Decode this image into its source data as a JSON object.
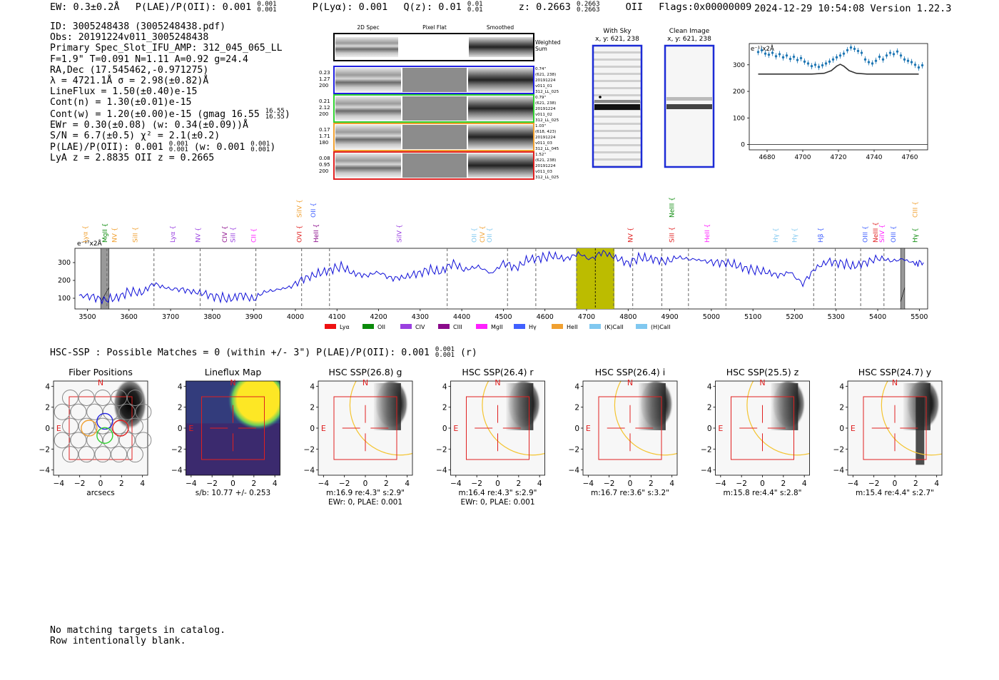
{
  "header": {
    "ew": "EW: 0.3±0.2Å",
    "plae_label": "P(LAE)/P(OII): 0.001",
    "plae_hi": "0.001",
    "plae_lo": "0.001",
    "plya": "P(Lyα): 0.001",
    "qz_label": "Q(z): 0.01",
    "qz_hi": "0.01",
    "qz_lo": "0.01",
    "z_label": "z: 0.2663",
    "z_hi": "0.2663",
    "z_lo": "0.2663",
    "z_line": "OII",
    "flags": "Flags:0x00000009",
    "stamp": "2024-12-29 10:54:08  Version 1.22.3"
  },
  "info": {
    "id": "ID: 3005248438 (3005248438.pdf)",
    "obs": "Obs: 20191224v011_3005248438",
    "primary": "Primary Spec_Slot_IFU_AMP: 312_045_065_LL",
    "fiber": "F=1.9\"  T=0.091  N=1.11  A=0.92  g=24.4",
    "radec": "RA,Dec (17.545462,-0.971275)",
    "lambda": "λ = 4721.1Å   σ = 2.98(±0.82)Å",
    "lineflux": "LineFlux = 1.50(±0.40)e-15",
    "contn": "Cont(n) = 1.30(±0.01)e-15",
    "contw": "Cont(w) = 1.20(±0.00)e-15 (gmag 16.55",
    "contw_hi": "16.55",
    "contw_lo": "16.55",
    "ewr": "EWr = 0.30(±0.08) (w: 0.34(±0.09))Å",
    "sn": "S/N = 6.7(±0.5)  χ² = 2.1(±0.2)",
    "plae": "P(LAE)/P(OII): 0.001",
    "plae_hi": "0.001",
    "plae_lo": "0.001",
    "plae_w": "(w: 0.001",
    "plae_w_hi": "0.001",
    "plae_w_lo": "0.001",
    "z": "LyA z = 2.8835   OII z = 0.2665"
  },
  "spec_panels": {
    "col_headers": [
      "2D Spec",
      "Pixel Flat",
      "Smoothed"
    ],
    "weighted_label": [
      "Weighted",
      "Sum"
    ],
    "rows": [
      {
        "color": "#2020e0",
        "left": [
          "0.23",
          "1.27",
          "200"
        ],
        "right": [
          "0.74\"",
          "(621, 238)",
          "20191224",
          "v011_01",
          "312_LL_025"
        ]
      },
      {
        "color": "#30d030",
        "left": [
          "0.21",
          "2.12",
          "200"
        ],
        "right": [
          "0.79\"",
          "(621, 238)",
          "20191224",
          "v011_02",
          "312_LL_025"
        ]
      },
      {
        "color": "#f0a030",
        "left": [
          "0.17",
          "1.71",
          "180"
        ],
        "right": [
          "1.03\"",
          "(618, 423)",
          "20191224",
          "v011_03",
          "312_LL_045"
        ]
      },
      {
        "color": "#e02020",
        "left": [
          "0.08",
          "0.95",
          "200"
        ],
        "right": [
          "1.52\"",
          "(621, 238)",
          "20191224",
          "v011_03",
          "312_LL_025"
        ]
      }
    ]
  },
  "sky_panels": {
    "with_sky": [
      "With Sky",
      "x, y: 621, 238"
    ],
    "clean": [
      "Clean Image",
      "x, y: 621, 238"
    ]
  },
  "chart_data": [
    {
      "type": "line",
      "title": "",
      "unit_label": "e⁻¹⁷x2Å",
      "xlim": [
        4670,
        4770
      ],
      "ylim": [
        -20,
        380
      ],
      "xticks": [
        4680,
        4700,
        4720,
        4740,
        4760
      ],
      "yticks": [
        0,
        100,
        200,
        300
      ],
      "series": [
        {
          "x": [
            4675,
            4677,
            4679,
            4681,
            4683,
            4685,
            4687,
            4689,
            4691,
            4693,
            4695,
            4697,
            4699,
            4701,
            4703,
            4705,
            4707,
            4709,
            4711,
            4713,
            4715,
            4717,
            4719,
            4721,
            4723,
            4725,
            4727,
            4729,
            4731,
            4733,
            4735,
            4737,
            4739,
            4741,
            4743,
            4745,
            4747,
            4749,
            4751,
            4753,
            4755,
            4757,
            4759,
            4761,
            4763,
            4765,
            4767
          ],
          "y": [
            348,
            355,
            342,
            338,
            345,
            332,
            340,
            328,
            335,
            322,
            330,
            318,
            325,
            312,
            305,
            295,
            300,
            292,
            298,
            305,
            312,
            320,
            328,
            335,
            342,
            355,
            365,
            360,
            352,
            345,
            320,
            310,
            305,
            315,
            330,
            320,
            335,
            345,
            340,
            350,
            335,
            320,
            315,
            310,
            300,
            290,
            298
          ]
        },
        {
          "x": [
            4675,
            4690,
            4705,
            4712,
            4716,
            4719,
            4721,
            4723,
            4726,
            4730,
            4736,
            4750,
            4765
          ],
          "y": [
            265,
            265,
            265,
            268,
            278,
            295,
            302,
            295,
            278,
            268,
            265,
            265,
            265
          ]
        }
      ]
    },
    {
      "type": "line",
      "title": "",
      "unit_label": "e⁻¹⁷x2Å",
      "xlim": [
        3470,
        5520
      ],
      "ylim": [
        40,
        380
      ],
      "xticks": [
        3500,
        3600,
        3700,
        3800,
        3900,
        4000,
        4100,
        4200,
        4300,
        4400,
        4500,
        4600,
        4700,
        4800,
        4900,
        5000,
        5100,
        5200,
        5300,
        5400,
        5500
      ],
      "yticks": [
        100,
        200,
        300
      ],
      "highlight": [
        4675,
        4767
      ],
      "highlight_center": 4721,
      "gray_bands": [
        [
          3532,
          3552
        ],
        [
          5455,
          5465
        ]
      ],
      "dashed_lines": [
        3547,
        3660,
        3771,
        3905,
        4015,
        4082,
        4365,
        4510,
        4578,
        4676,
        4765,
        4811,
        4881,
        4945,
        5035,
        5246,
        5298,
        5359,
        5415
      ],
      "series": [
        {
          "x": [
            3480,
            3510,
            3540,
            3570,
            3600,
            3630,
            3660,
            3690,
            3720,
            3750,
            3780,
            3810,
            3840,
            3870,
            3900,
            3930,
            3960,
            3990,
            4020,
            4050,
            4080,
            4110,
            4140,
            4170,
            4200,
            4230,
            4260,
            4290,
            4320,
            4350,
            4380,
            4410,
            4440,
            4470,
            4500,
            4530,
            4560,
            4590,
            4620,
            4650,
            4680,
            4710,
            4740,
            4770,
            4800,
            4830,
            4860,
            4890,
            4920,
            4950,
            4980,
            5010,
            5040,
            5070,
            5100,
            5130,
            5160,
            5190,
            5220,
            5250,
            5280,
            5310,
            5340,
            5370,
            5400,
            5430,
            5460,
            5490,
            5510
          ],
          "y": [
            120,
            110,
            90,
            105,
            140,
            130,
            185,
            160,
            150,
            140,
            130,
            110,
            95,
            120,
            100,
            140,
            150,
            170,
            210,
            235,
            260,
            280,
            240,
            230,
            250,
            210,
            220,
            240,
            260,
            250,
            300,
            260,
            280,
            240,
            300,
            270,
            320,
            330,
            340,
            320,
            355,
            320,
            360,
            330,
            300,
            330,
            320,
            310,
            330,
            320,
            315,
            300,
            300,
            280,
            260,
            250,
            230,
            250,
            180,
            270,
            310,
            300,
            280,
            300,
            330,
            310,
            320,
            300,
            300
          ]
        }
      ],
      "line_labels": [
        {
          "name": "Lyα",
          "w": 3500,
          "color": "#f0a030",
          "row": 1
        },
        {
          "name": "MgII",
          "w": 3547,
          "color": "#0a8a0a",
          "row": 1
        },
        {
          "name": "NV",
          "w": 3570,
          "color": "#f0a030",
          "row": 1
        },
        {
          "name": "SiII",
          "w": 3620,
          "color": "#f0a030",
          "row": 1
        },
        {
          "name": "Lyα",
          "w": 3710,
          "color": "#9a40e0",
          "row": 1
        },
        {
          "name": "NV",
          "w": 3771,
          "color": "#9a40e0",
          "row": 1
        },
        {
          "name": "CIV",
          "w": 3835,
          "color": "#8a0a8a",
          "row": 1
        },
        {
          "name": "SiII",
          "w": 3855,
          "color": "#9a40e0",
          "row": 1
        },
        {
          "name": "CII",
          "w": 3905,
          "color": "#ff20ff",
          "row": 1
        },
        {
          "name": "OVI",
          "w": 4015,
          "color": "#e02020",
          "row": 1
        },
        {
          "name": "HeII",
          "w": 4055,
          "color": "#8a0a8a",
          "row": 1
        },
        {
          "name": "SiIV",
          "w": 4015,
          "color": "#f0a030",
          "row": 0
        },
        {
          "name": "OII",
          "w": 4048,
          "color": "#4060ff",
          "row": 0
        },
        {
          "name": "SiIV",
          "w": 4255,
          "color": "#9a40e0",
          "row": 1
        },
        {
          "name": "OII",
          "w": 4435,
          "color": "#80c8f0",
          "row": 1
        },
        {
          "name": "CIV",
          "w": 4455,
          "color": "#f0a030",
          "row": 1
        },
        {
          "name": "OII",
          "w": 4472,
          "color": "#80c8f0",
          "row": 1
        },
        {
          "name": "NV",
          "w": 4811,
          "color": "#e02020",
          "row": 1
        },
        {
          "name": "SiII",
          "w": 4910,
          "color": "#e02020",
          "row": 1
        },
        {
          "name": "NeIII",
          "w": 4910,
          "color": "#0a8a0a",
          "row": 0
        },
        {
          "name": "HeII",
          "w": 4995,
          "color": "#ff20ff",
          "row": 1
        },
        {
          "name": "Hγ",
          "w": 5160,
          "color": "#80c8f0",
          "row": 1
        },
        {
          "name": "Hγ",
          "w": 5205,
          "color": "#80c8f0",
          "row": 1
        },
        {
          "name": "Hβ",
          "w": 5268,
          "color": "#4060ff",
          "row": 1
        },
        {
          "name": "OIII",
          "w": 5375,
          "color": "#4060ff",
          "row": 1
        },
        {
          "name": "NeIII",
          "w": 5400,
          "color": "#e02020",
          "row": 1
        },
        {
          "name": "SiIV",
          "w": 5415,
          "color": "#ff20ff",
          "row": 1
        },
        {
          "name": "OIII",
          "w": 5443,
          "color": "#4060ff",
          "row": 1
        },
        {
          "name": "Hγ",
          "w": 5495,
          "color": "#0a8a0a",
          "row": 1
        },
        {
          "name": "CIII",
          "w": 5495,
          "color": "#f0a030",
          "row": 0
        }
      ],
      "legend": [
        {
          "name": "Lyα",
          "color": "#ee1111"
        },
        {
          "name": "OII",
          "color": "#0a8a0a"
        },
        {
          "name": "CIV",
          "color": "#9a40e0"
        },
        {
          "name": "CIII",
          "color": "#8a0a8a"
        },
        {
          "name": "MgII",
          "color": "#ff20ff"
        },
        {
          "name": "Hγ",
          "color": "#4060ff"
        },
        {
          "name": "HeII",
          "color": "#f0a030"
        },
        {
          "name": "(K)CaII",
          "color": "#80c8f0"
        },
        {
          "name": "(H)CaII",
          "color": "#80c8f0"
        }
      ]
    }
  ],
  "hsc": {
    "line": "HSC-SSP : Possible Matches = 0 (within +/- 3\")  P(LAE)/P(OII): 0.001",
    "hi": "0.001",
    "lo": "0.001",
    "band": "(r)"
  },
  "thumbs": {
    "ticks": [
      "−4",
      "−2",
      "0",
      "2",
      "4"
    ],
    "north": "N",
    "east": "E",
    "panels": [
      {
        "title": "Fiber Positions",
        "cap1": "arcsecs",
        "cap2": ""
      },
      {
        "title": "Lineflux Map",
        "cap1": "s/b: 10.77 +/- 0.253",
        "cap2": ""
      },
      {
        "title": "HSC SSP(26.8) g",
        "cap1": "m:16.9  re:4.3\"  s:2.9\"",
        "cap2": "EWr: 0, PLAE: 0.001"
      },
      {
        "title": "HSC SSP(26.4) r",
        "cap1": "m:16.4  re:4.3\"  s:2.9\"",
        "cap2": "EWr: 0, PLAE: 0.001"
      },
      {
        "title": "HSC SSP(26.4) i",
        "cap1": "m:16.7  re:3.6\"  s:3.2\"",
        "cap2": ""
      },
      {
        "title": "HSC SSP(25.5) z",
        "cap1": "m:15.8  re:4.4\"  s:2.8\"",
        "cap2": ""
      },
      {
        "title": "HSC SSP(24.7) y",
        "cap1": "m:15.4  re:4.4\"  s:2.7\"",
        "cap2": ""
      }
    ]
  },
  "bottom": {
    "line1": "No matching targets in catalog.",
    "line2": "Row intentionally blank."
  }
}
